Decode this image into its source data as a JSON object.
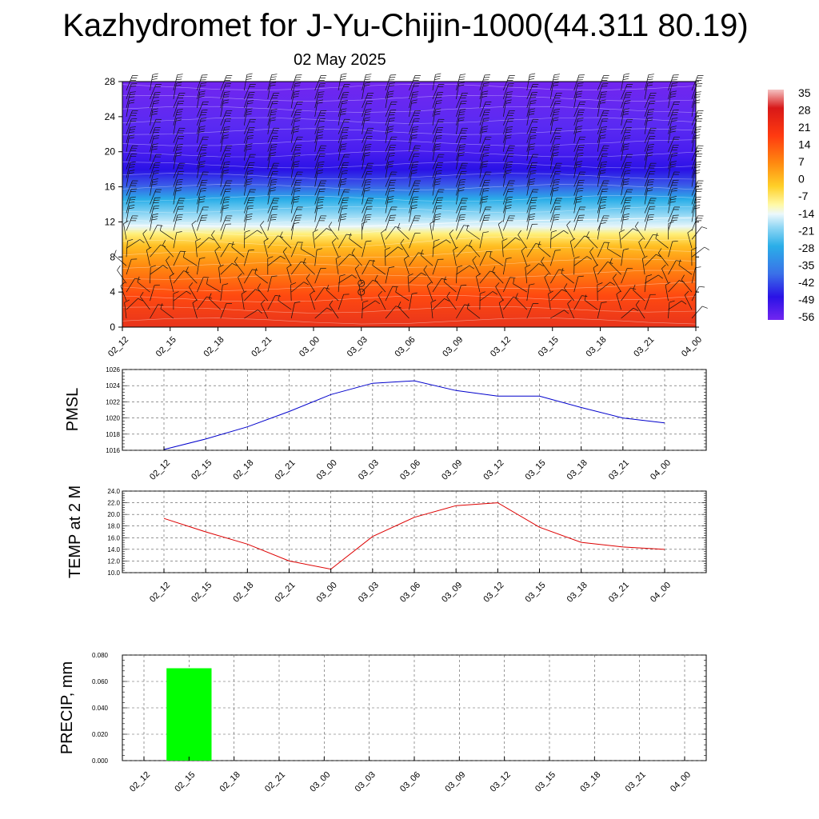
{
  "title": "Kazhydromet for J-Yu-Chijin-1000(44.311 80.19)",
  "subtitle": "02 May 2025",
  "time_labels": [
    "02_12",
    "02_15",
    "02_18",
    "02_21",
    "03_00",
    "03_03",
    "03_06",
    "03_09",
    "03_12",
    "03_15",
    "03_18",
    "03_21",
    "04_00"
  ],
  "chart_data": [
    {
      "type": "heatmap",
      "title": "",
      "xlabel": "",
      "ylabel": "",
      "x": [
        "02_12",
        "02_15",
        "02_18",
        "02_21",
        "03_00",
        "03_03",
        "03_06",
        "03_09",
        "03_12",
        "03_15",
        "03_18",
        "03_21",
        "04_00"
      ],
      "y_ticks": [
        0,
        4,
        8,
        12,
        16,
        20,
        24,
        28
      ],
      "ylim": [
        0,
        28
      ],
      "freezing_level": [
        11.6,
        11.6,
        11.5,
        11.5,
        11.4,
        11.5,
        11.7,
        11.9,
        12.1,
        12.2,
        12.3,
        12.4,
        12.5
      ],
      "colorbar": {
        "labels": [
          "35",
          "28",
          "21",
          "14",
          "7",
          "0",
          "-7",
          "-14",
          "-21",
          "-28",
          "-35",
          "-42",
          "-49",
          "-56"
        ],
        "range": [
          -63,
          42
        ]
      },
      "overlay": "wind barbs",
      "grid": false
    },
    {
      "type": "line",
      "ylabel": "PMSL",
      "x": [
        "02_12",
        "02_15",
        "02_18",
        "02_21",
        "03_00",
        "03_03",
        "03_06",
        "03_09",
        "03_12",
        "03_15",
        "03_18",
        "03_21",
        "04_00"
      ],
      "series": [
        {
          "values": [
            1016.1,
            1017.4,
            1018.9,
            1020.8,
            1022.9,
            1024.3,
            1024.6,
            1023.4,
            1022.7,
            1022.7,
            1021.3,
            1020.0,
            1019.4
          ]
        }
      ],
      "y_ticks": [
        "1016",
        "1018",
        "1020",
        "1022",
        "1024",
        "1026"
      ],
      "ylim": [
        1016,
        1026
      ],
      "color": "#0000cc",
      "grid": true
    },
    {
      "type": "line",
      "ylabel": "TEMP at 2 M",
      "x": [
        "02_12",
        "02_15",
        "02_18",
        "02_21",
        "03_00",
        "03_03",
        "03_06",
        "03_09",
        "03_12",
        "03_15",
        "03_18",
        "03_21",
        "04_00"
      ],
      "series": [
        {
          "values": [
            19.3,
            17.0,
            14.9,
            12.0,
            10.6,
            16.2,
            19.5,
            21.5,
            22.0,
            17.8,
            15.2,
            14.4,
            14.0
          ]
        }
      ],
      "y_ticks": [
        "10.0",
        "12.0",
        "14.0",
        "16.0",
        "18.0",
        "20.0",
        "22.0",
        "24.0"
      ],
      "ylim": [
        10,
        24
      ],
      "color": "#dd0000",
      "grid": true
    },
    {
      "type": "bar",
      "ylabel": "PRECIP, mm",
      "categories": [
        "02_12",
        "02_15",
        "02_18",
        "02_21",
        "03_00",
        "03_03",
        "03_06",
        "03_09",
        "03_12",
        "03_15",
        "03_18",
        "03_21",
        "04_00"
      ],
      "values": [
        0,
        0.07,
        0,
        0,
        0,
        0,
        0,
        0,
        0,
        0,
        0,
        0,
        0
      ],
      "y_ticks": [
        "0.000",
        "0.020",
        "0.040",
        "0.060",
        "0.080"
      ],
      "ylim": [
        0,
        0.08
      ],
      "color": "#00ff00",
      "grid": true
    }
  ]
}
